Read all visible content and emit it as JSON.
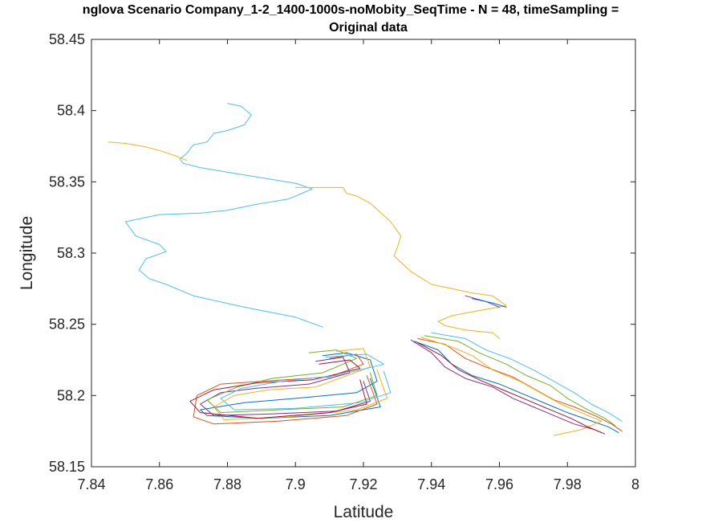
{
  "chart_data": {
    "type": "line",
    "title_line1": "nglova Scenario Company_1-2_1400-1000s-noMobity_SeqTime - N = 48, timeSampling =",
    "title_line2": "Original data",
    "xlabel": "Latitude",
    "ylabel": "Longitude",
    "xlim": [
      7.84,
      8.0
    ],
    "ylim": [
      58.15,
      58.45
    ],
    "xticks": [
      "7.84",
      "7.86",
      "7.88",
      "7.9",
      "7.92",
      "7.94",
      "7.96",
      "7.98",
      "8"
    ],
    "yticks": [
      "58.45",
      "58.4",
      "58.35",
      "58.3",
      "58.25",
      "58.2",
      "58.15"
    ],
    "grid": false,
    "legend": "none",
    "colors": [
      "#0072BD",
      "#D95319",
      "#EDB120",
      "#7E2F8E",
      "#77AC30",
      "#4DBEEE",
      "#A2142F"
    ],
    "series": [
      {
        "color_index": 5,
        "x": [
          7.88,
          7.884,
          7.887,
          7.885,
          7.88,
          7.876,
          7.874,
          7.87,
          7.868,
          7.866,
          7.867,
          7.872,
          7.882,
          7.9,
          7.905,
          7.898,
          7.888,
          7.88,
          7.872,
          7.86,
          7.85,
          7.853,
          7.86,
          7.862,
          7.856,
          7.854,
          7.857,
          7.862,
          7.87,
          7.885,
          7.9,
          7.908
        ],
        "y": [
          58.405,
          58.403,
          58.397,
          58.39,
          58.386,
          58.384,
          58.378,
          58.376,
          58.37,
          58.366,
          58.363,
          58.36,
          58.356,
          58.349,
          58.345,
          58.338,
          58.334,
          58.33,
          58.328,
          58.327,
          58.322,
          58.312,
          58.306,
          58.301,
          58.296,
          58.288,
          58.282,
          58.278,
          58.27,
          58.262,
          58.255,
          58.248
        ]
      },
      {
        "color_index": 2,
        "x": [
          7.845,
          7.85,
          7.855,
          7.86,
          7.865,
          7.868
        ],
        "y": [
          58.378,
          58.377,
          58.375,
          58.372,
          58.368,
          58.365
        ]
      },
      {
        "color_index": 2,
        "x": [
          7.9,
          7.908,
          7.914,
          7.915,
          7.918,
          7.922,
          7.928,
          7.931,
          7.93,
          7.929,
          7.934,
          7.94,
          7.946,
          7.952,
          7.958,
          7.962,
          7.955,
          7.946,
          7.942,
          7.944,
          7.95,
          7.958,
          7.96
        ],
        "y": [
          58.346,
          58.346,
          58.346,
          58.342,
          58.34,
          58.335,
          58.322,
          58.312,
          58.304,
          58.298,
          58.287,
          58.278,
          58.275,
          58.272,
          58.27,
          58.263,
          58.26,
          58.256,
          58.252,
          58.249,
          58.246,
          58.244,
          58.24
        ]
      },
      {
        "color_index": 0,
        "x": [
          7.908,
          7.915,
          7.922,
          7.924,
          7.918,
          7.9,
          7.885,
          7.872,
          7.874,
          7.89,
          7.91,
          7.925,
          7.922
        ],
        "y": [
          58.228,
          58.23,
          58.225,
          58.21,
          58.202,
          58.198,
          58.195,
          58.19,
          58.186,
          58.184,
          58.186,
          58.192,
          58.212
        ]
      },
      {
        "color_index": 1,
        "x": [
          7.91,
          7.918,
          7.92,
          7.91,
          7.89,
          7.878,
          7.871,
          7.87,
          7.876,
          7.895,
          7.915,
          7.924,
          7.921
        ],
        "y": [
          58.226,
          58.229,
          58.222,
          58.213,
          58.21,
          58.208,
          58.2,
          58.185,
          58.18,
          58.182,
          58.186,
          58.194,
          58.214
        ]
      },
      {
        "color_index": 2,
        "x": [
          7.912,
          7.92,
          7.922,
          7.906,
          7.892,
          7.882,
          7.876,
          7.879,
          7.898,
          7.918,
          7.927,
          7.924
        ],
        "y": [
          58.231,
          58.233,
          58.22,
          58.206,
          58.204,
          58.2,
          58.192,
          58.183,
          58.185,
          58.19,
          58.198,
          58.218
        ]
      },
      {
        "color_index": 3,
        "x": [
          7.906,
          7.914,
          7.916,
          7.904,
          7.888,
          7.878,
          7.872,
          7.876,
          7.892,
          7.912,
          7.922,
          7.92
        ],
        "y": [
          58.224,
          58.227,
          58.216,
          58.208,
          58.205,
          58.202,
          58.194,
          58.186,
          58.187,
          58.189,
          58.196,
          58.21
        ]
      },
      {
        "color_index": 4,
        "x": [
          7.904,
          7.912,
          7.918,
          7.908,
          7.893,
          7.883,
          7.874,
          7.878,
          7.895,
          7.914,
          7.924,
          7.922
        ],
        "y": [
          58.23,
          58.232,
          58.226,
          58.216,
          58.212,
          58.206,
          58.197,
          58.188,
          58.19,
          58.192,
          58.2,
          58.216
        ]
      },
      {
        "color_index": 6,
        "x": [
          7.907,
          7.916,
          7.919,
          7.905,
          7.889,
          7.876,
          7.869,
          7.872,
          7.889,
          7.91,
          7.921,
          7.919
        ],
        "y": [
          58.222,
          58.225,
          58.219,
          58.211,
          58.209,
          58.204,
          58.196,
          58.188,
          58.184,
          58.188,
          58.194,
          58.211
        ]
      },
      {
        "color_index": 5,
        "x": [
          7.909,
          7.921,
          7.926,
          7.912,
          7.896,
          7.884,
          7.878,
          7.882,
          7.9,
          7.919,
          7.928,
          7.926
        ],
        "y": [
          58.227,
          58.229,
          58.222,
          58.214,
          58.21,
          58.205,
          58.198,
          58.19,
          58.191,
          58.195,
          58.202,
          58.217
        ]
      },
      {
        "color_index": 0,
        "x": [
          7.935,
          7.942,
          7.946,
          7.952,
          7.96,
          7.968,
          7.974,
          7.98,
          7.986,
          7.992,
          7.995
        ],
        "y": [
          58.238,
          58.232,
          58.222,
          58.214,
          58.208,
          58.2,
          58.194,
          58.188,
          58.183,
          58.178,
          58.174
        ]
      },
      {
        "color_index": 1,
        "x": [
          7.936,
          7.944,
          7.95,
          7.956,
          7.964,
          7.97,
          7.976,
          7.982,
          7.988,
          7.993,
          7.996
        ],
        "y": [
          58.24,
          58.236,
          58.226,
          58.22,
          58.213,
          58.205,
          58.197,
          58.192,
          58.186,
          58.18,
          58.175
        ]
      },
      {
        "color_index": 2,
        "x": [
          7.937,
          7.946,
          7.952,
          7.958,
          7.966,
          7.972,
          7.978,
          7.984,
          7.99,
          7.984,
          7.976
        ],
        "y": [
          58.241,
          58.234,
          58.228,
          58.218,
          58.21,
          58.202,
          58.194,
          58.188,
          58.182,
          58.176,
          58.172
        ]
      },
      {
        "color_index": 3,
        "x": [
          7.934,
          7.94,
          7.944,
          7.95,
          7.958,
          7.964,
          7.97,
          7.976,
          7.982,
          7.988,
          7.991
        ],
        "y": [
          58.239,
          58.23,
          58.22,
          58.212,
          58.206,
          58.198,
          58.192,
          58.186,
          58.18,
          58.176,
          58.173
        ]
      },
      {
        "color_index": 4,
        "x": [
          7.938,
          7.948,
          7.954,
          7.962,
          7.968,
          7.975,
          7.98,
          7.986,
          7.991,
          7.994
        ],
        "y": [
          58.242,
          58.238,
          58.23,
          58.222,
          58.214,
          58.207,
          58.198,
          58.19,
          58.184,
          58.179
        ]
      },
      {
        "color_index": 5,
        "x": [
          7.94,
          7.95,
          7.956,
          7.963,
          7.97,
          7.976,
          7.982,
          7.987,
          7.992,
          7.996
        ],
        "y": [
          58.244,
          58.24,
          58.232,
          58.226,
          58.218,
          58.21,
          58.202,
          58.194,
          58.188,
          58.182
        ]
      },
      {
        "color_index": 6,
        "x": [
          7.936,
          7.943,
          7.948,
          7.955,
          7.962,
          7.969,
          7.975,
          7.981,
          7.986,
          7.99
        ],
        "y": [
          58.237,
          58.228,
          58.218,
          58.21,
          58.203,
          58.196,
          58.19,
          58.184,
          58.178,
          58.174
        ]
      },
      {
        "color_index": 3,
        "x": [
          7.95,
          7.956,
          7.96
        ],
        "y": [
          58.27,
          58.266,
          58.262
        ]
      },
      {
        "color_index": 0,
        "x": [
          7.952,
          7.958,
          7.962
        ],
        "y": [
          58.268,
          58.265,
          58.262
        ]
      }
    ]
  }
}
